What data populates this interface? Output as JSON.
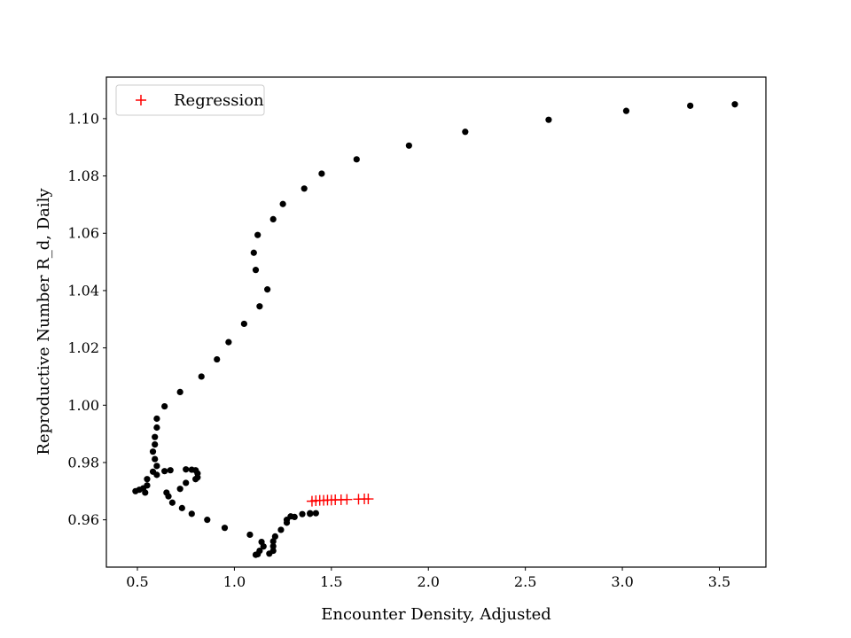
{
  "chart_data": {
    "type": "scatter",
    "title": "",
    "xlabel": "Encounter Density, Adjusted",
    "ylabel": "Reproductive Number R_d, Daily",
    "xlim": [
      0.34,
      3.74
    ],
    "ylim": [
      0.9435,
      1.1145
    ],
    "xticks": [
      0.5,
      1.0,
      1.5,
      2.0,
      2.5,
      3.0,
      3.5
    ],
    "xtick_labels": [
      "0.5",
      "1.0",
      "1.5",
      "2.0",
      "2.5",
      "3.0",
      "3.5"
    ],
    "yticks": [
      0.96,
      0.98,
      1.0,
      1.02,
      1.04,
      1.06,
      1.08,
      1.1
    ],
    "ytick_labels": [
      "0.96",
      "0.98",
      "1.00",
      "1.02",
      "1.04",
      "1.06",
      "1.08",
      "1.10"
    ],
    "grid": false,
    "legend": {
      "position": "top-left",
      "entries": [
        "Regression"
      ]
    },
    "colors": {
      "observed": "#000000",
      "regression": "#ff0000"
    },
    "series": [
      {
        "marker": "dot",
        "points": [
          [
            3.58,
            1.105
          ],
          [
            3.35,
            1.1045
          ],
          [
            3.02,
            1.1027
          ],
          [
            2.62,
            1.0996
          ],
          [
            2.19,
            1.0954
          ],
          [
            1.9,
            1.0906
          ],
          [
            1.63,
            1.0858
          ],
          [
            1.45,
            1.0808
          ],
          [
            1.36,
            1.0756
          ],
          [
            1.25,
            1.0702
          ],
          [
            1.2,
            1.0649
          ],
          [
            1.12,
            1.0594
          ],
          [
            1.1,
            1.0532
          ],
          [
            1.11,
            1.0472
          ],
          [
            1.17,
            1.0404
          ],
          [
            1.13,
            1.0345
          ],
          [
            1.05,
            1.0284
          ],
          [
            0.97,
            1.022
          ],
          [
            0.91,
            1.016
          ],
          [
            0.83,
            1.01
          ],
          [
            0.72,
            1.0046
          ],
          [
            0.64,
            0.9996
          ],
          [
            0.6,
            0.9953
          ],
          [
            0.6,
            0.9922
          ],
          [
            0.59,
            0.9889
          ],
          [
            0.59,
            0.9863
          ],
          [
            0.58,
            0.9838
          ],
          [
            0.59,
            0.9812
          ],
          [
            0.6,
            0.9788
          ],
          [
            0.58,
            0.9768
          ],
          [
            0.6,
            0.9757
          ],
          [
            0.55,
            0.9742
          ],
          [
            0.55,
            0.972
          ],
          [
            0.53,
            0.971
          ],
          [
            0.51,
            0.9705
          ],
          [
            0.49,
            0.97
          ],
          [
            0.54,
            0.9695
          ],
          [
            0.65,
            0.9695
          ],
          [
            0.66,
            0.9682
          ],
          [
            0.68,
            0.966
          ],
          [
            0.73,
            0.9641
          ],
          [
            0.78,
            0.9621
          ],
          [
            0.86,
            0.96
          ],
          [
            0.95,
            0.9572
          ],
          [
            1.08,
            0.9548
          ],
          [
            1.14,
            0.9523
          ],
          [
            1.15,
            0.9507
          ],
          [
            1.13,
            0.9492
          ],
          [
            1.12,
            0.948
          ],
          [
            1.11,
            0.9478
          ],
          [
            1.18,
            0.9482
          ],
          [
            1.2,
            0.9492
          ],
          [
            1.2,
            0.9508
          ],
          [
            1.2,
            0.9525
          ],
          [
            1.21,
            0.9542
          ],
          [
            1.24,
            0.9565
          ],
          [
            1.27,
            0.959
          ],
          [
            1.27,
            0.96
          ],
          [
            1.29,
            0.9612
          ],
          [
            1.31,
            0.961
          ],
          [
            1.35,
            0.962
          ],
          [
            1.39,
            0.9623
          ],
          [
            1.42,
            0.9623
          ],
          [
            1.39,
            0.9621
          ],
          [
            0.64,
            0.977
          ],
          [
            0.67,
            0.9773
          ],
          [
            0.75,
            0.9776
          ],
          [
            0.78,
            0.9775
          ],
          [
            0.8,
            0.9773
          ],
          [
            0.81,
            0.9762
          ],
          [
            0.81,
            0.9748
          ],
          [
            0.8,
            0.9742
          ],
          [
            0.75,
            0.9729
          ],
          [
            0.72,
            0.9708
          ]
        ]
      },
      {
        "name": "Regression",
        "marker": "plus",
        "points": [
          [
            1.4,
            0.9665
          ],
          [
            1.42,
            0.9667
          ],
          [
            1.44,
            0.9668
          ],
          [
            1.46,
            0.9668
          ],
          [
            1.48,
            0.9669
          ],
          [
            1.5,
            0.9669
          ],
          [
            1.52,
            0.967
          ],
          [
            1.55,
            0.967
          ],
          [
            1.58,
            0.9671
          ],
          [
            1.64,
            0.9672
          ],
          [
            1.67,
            0.9673
          ],
          [
            1.69,
            0.9673
          ]
        ]
      }
    ]
  }
}
